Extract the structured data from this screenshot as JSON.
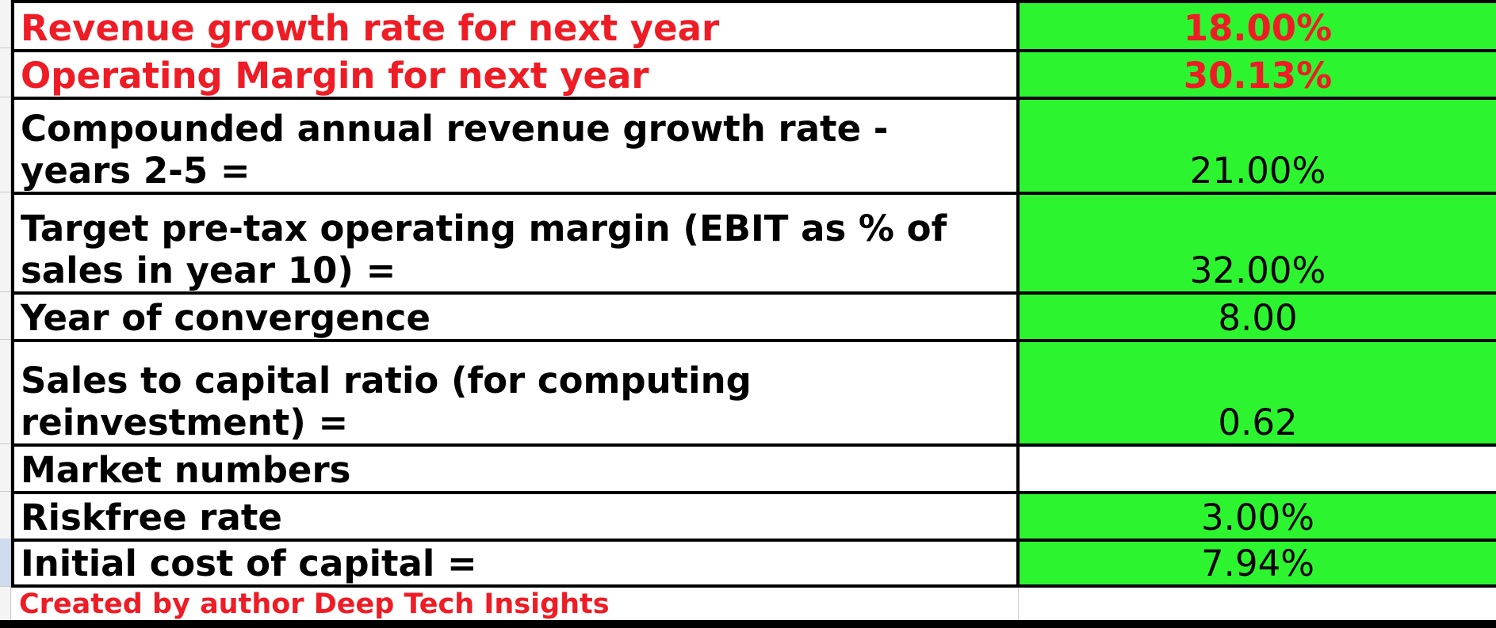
{
  "rows": [
    {
      "label": "Revenue growth rate for next year",
      "value": "18.00%"
    },
    {
      "label": "Operating Margin for next year",
      "value": "30.13%"
    },
    {
      "label_line1": "Compounded annual revenue growth rate -",
      "label_line2": "years 2-5 =",
      "value": "21.00%"
    },
    {
      "label_line1": "Target pre-tax operating margin (EBIT as % of",
      "label_line2": "sales in year 10) =",
      "value": "32.00%"
    },
    {
      "label": "Year of convergence",
      "value": "8.00"
    },
    {
      "label_line1": "Sales to capital ratio  (for computing",
      "label_line2": "reinvestment) =",
      "value": "0.62"
    },
    {
      "label": "Market numbers",
      "value": ""
    },
    {
      "label": "Riskfree rate",
      "value": "3.00%"
    },
    {
      "label": "Initial cost of capital =",
      "value": "7.94%"
    }
  ],
  "footer": {
    "text": "Created by author Deep Tech Insights"
  },
  "colors": {
    "input_cell_green": "#2cf530",
    "highlight_red": "#ee1c25",
    "border_black": "#000000"
  }
}
